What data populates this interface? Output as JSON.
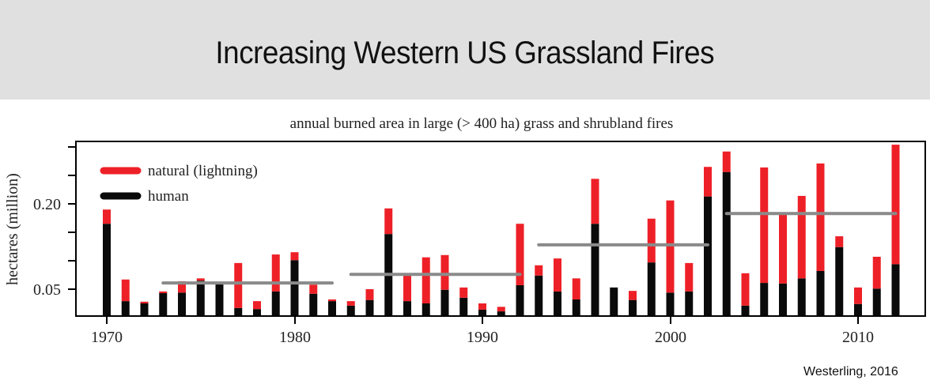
{
  "header": {
    "title": "Increasing Western US Grassland Fires",
    "background": "#e0e0e0"
  },
  "credit": "Westerling, 2016",
  "colors": {
    "natural": "#ee2027",
    "human": "#0a0a0a",
    "mean_line": "#8a8a8a"
  },
  "chart_data": {
    "type": "bar",
    "stacked": true,
    "title": "annual burned area in large (> 400 ha) grass and shrubland fires",
    "xlabel": "",
    "ylabel": "hectares (million)",
    "ylim": [
      0,
      0.31
    ],
    "yticks": [
      0.05,
      0.1,
      0.15,
      0.2,
      0.25,
      0.3
    ],
    "ytick_labels": {
      "0.05": "0.05",
      "0.20": "0.20"
    },
    "xticks": [
      1970,
      1980,
      1990,
      2000,
      2010
    ],
    "grid": false,
    "legend": {
      "position": "upper left",
      "entries": [
        "natural (lightning)",
        "human"
      ]
    },
    "categories": [
      1970,
      1971,
      1972,
      1973,
      1974,
      1975,
      1976,
      1977,
      1978,
      1979,
      1980,
      1981,
      1982,
      1983,
      1984,
      1985,
      1986,
      1987,
      1988,
      1989,
      1990,
      1991,
      1992,
      1993,
      1994,
      1995,
      1996,
      1997,
      1998,
      1999,
      2000,
      2001,
      2002,
      2003,
      2004,
      2005,
      2006,
      2007,
      2008,
      2009,
      2010,
      2011,
      2012
    ],
    "series": [
      {
        "name": "human",
        "values": [
          0.165,
          0.029,
          0.025,
          0.043,
          0.044,
          0.065,
          0.061,
          0.017,
          0.015,
          0.046,
          0.101,
          0.042,
          0.029,
          0.021,
          0.031,
          0.147,
          0.029,
          0.025,
          0.049,
          0.035,
          0.014,
          0.011,
          0.057,
          0.074,
          0.046,
          0.032,
          0.165,
          0.053,
          0.031,
          0.097,
          0.044,
          0.046,
          0.213,
          0.256,
          0.021,
          0.061,
          0.06,
          0.069,
          0.082,
          0.124,
          0.024,
          0.051,
          0.094
        ]
      },
      {
        "name": "natural (lightning)",
        "values": [
          0.025,
          0.038,
          0.003,
          0.003,
          0.02,
          0.004,
          0.0,
          0.079,
          0.014,
          0.065,
          0.014,
          0.016,
          0.003,
          0.008,
          0.019,
          0.045,
          0.045,
          0.081,
          0.061,
          0.018,
          0.011,
          0.008,
          0.108,
          0.018,
          0.058,
          0.037,
          0.079,
          0.0,
          0.016,
          0.077,
          0.162,
          0.05,
          0.052,
          0.036,
          0.057,
          0.203,
          0.123,
          0.145,
          0.189,
          0.019,
          0.029,
          0.056,
          0.21
        ]
      }
    ],
    "decadal_means": [
      {
        "start": 1973,
        "end": 1982,
        "value": 0.061
      },
      {
        "start": 1983,
        "end": 1992,
        "value": 0.076
      },
      {
        "start": 1993,
        "end": 2002,
        "value": 0.128
      },
      {
        "start": 2003,
        "end": 2012,
        "value": 0.183
      }
    ]
  }
}
